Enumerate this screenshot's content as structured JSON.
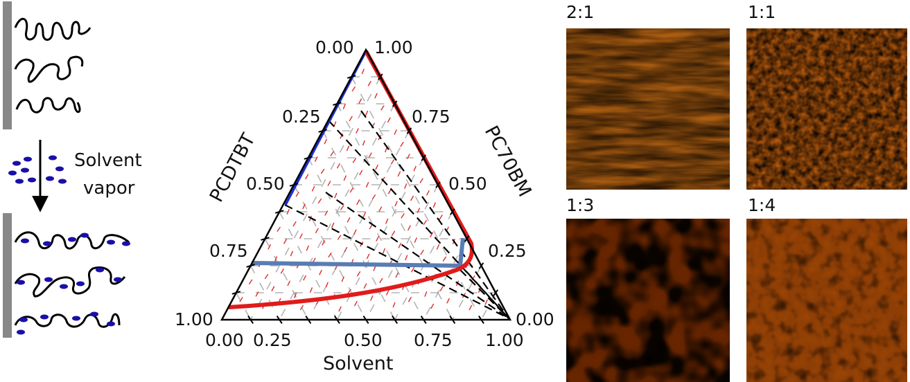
{
  "schematic": {
    "label_line1": "Solvent",
    "label_line2": "vapor"
  },
  "ternary": {
    "corner_top": "0.00",
    "corner_top_right": "1.00",
    "left_ticks": [
      "0.25",
      "0.50",
      "0.75",
      "1.00"
    ],
    "right_ticks": [
      "0.75",
      "0.50",
      "0.25",
      "0.00"
    ],
    "bottom_ticks": [
      "0.00",
      "0.25",
      "0.50",
      "0.75",
      "1.00"
    ],
    "left_axis_label": "PCDTBT",
    "right_axis_label": "PC70BM",
    "bottom_axis_label": "Solvent",
    "colors": {
      "binodal": "#e01b1b",
      "spinodal_blue": "#1f2fd0",
      "steel_blue": "#5a7cb4",
      "tie_lines": "#000000",
      "grid": "#9a9a9a",
      "direction_field": "#e02a2a"
    }
  },
  "afm": {
    "panels": [
      {
        "label": "2:1",
        "texture": "striped"
      },
      {
        "label": "1:1",
        "texture": "granular"
      },
      {
        "label": "1:3",
        "texture": "domains"
      },
      {
        "label": "1:4",
        "texture": "bright-grains"
      }
    ],
    "colors": {
      "dark": "#6a2600",
      "mid": "#c66a12",
      "light": "#ffd58a"
    }
  }
}
